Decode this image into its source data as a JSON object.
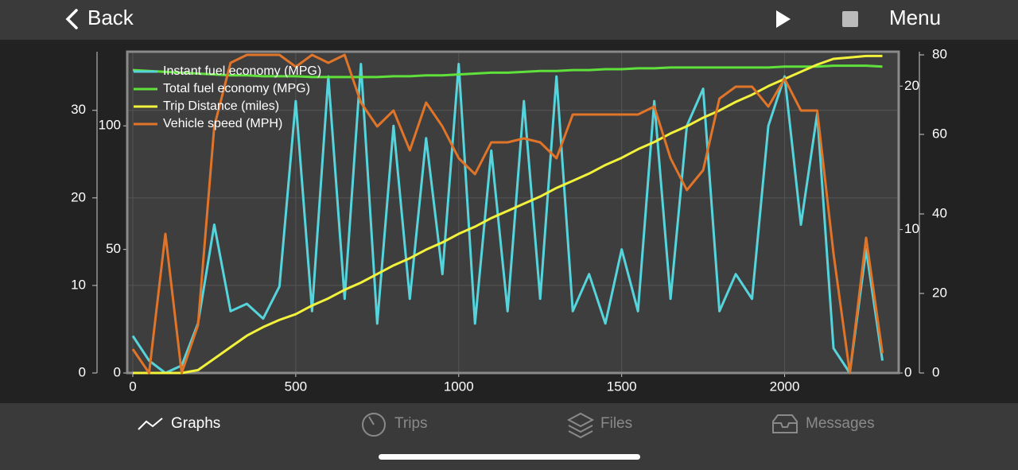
{
  "nav": {
    "back": "Back",
    "menu": "Menu"
  },
  "tabs": [
    "Graphs",
    "Trips",
    "Files",
    "Messages"
  ],
  "chart_data": {
    "type": "line",
    "x": [
      0,
      50,
      100,
      150,
      200,
      250,
      300,
      350,
      400,
      450,
      500,
      550,
      600,
      650,
      700,
      750,
      800,
      850,
      900,
      950,
      1000,
      1050,
      1100,
      1150,
      1200,
      1250,
      1300,
      1350,
      1400,
      1450,
      1500,
      1550,
      1600,
      1650,
      1700,
      1750,
      1800,
      1850,
      1900,
      1950,
      2000,
      2050,
      2100,
      2150,
      2200,
      2250,
      2300
    ],
    "xlim": [
      -17,
      2350
    ],
    "xticks": [
      0,
      500,
      1000,
      1500,
      2000
    ],
    "ylim": [
      0,
      36.7
    ],
    "yticks": [
      0,
      10,
      20,
      30
    ],
    "y2lim": [
      0,
      22.4
    ],
    "y2ticks": [
      0,
      10,
      20
    ],
    "y3lim": [
      0,
      130
    ],
    "y3ticks": [
      0,
      50,
      100
    ],
    "y4lim": [
      0,
      80.8
    ],
    "y4ticks": [
      0,
      20,
      40,
      60,
      80
    ],
    "grid": true,
    "legend": "top-left",
    "series": [
      {
        "name": "Instant fuel economy (MPG)",
        "color": "#56d4dc",
        "axis": "y3",
        "values": [
          15,
          5,
          0,
          3,
          20,
          60,
          25,
          28,
          22,
          35,
          110,
          25,
          120,
          30,
          125,
          20,
          100,
          30,
          95,
          40,
          125,
          20,
          90,
          25,
          110,
          30,
          120,
          25,
          40,
          20,
          50,
          25,
          110,
          30,
          100,
          115,
          25,
          40,
          30,
          100,
          120,
          60,
          105,
          10,
          0,
          50,
          5
        ]
      },
      {
        "name": "Total fuel economy (MPG)",
        "color": "#5fe03a",
        "axis": "y",
        "values": [
          34.6,
          34.5,
          34.4,
          34.3,
          34.2,
          34.1,
          34.0,
          34.0,
          33.9,
          33.9,
          33.9,
          33.8,
          33.8,
          33.8,
          33.8,
          33.8,
          33.9,
          33.9,
          34.0,
          34.0,
          34.1,
          34.2,
          34.3,
          34.3,
          34.4,
          34.5,
          34.5,
          34.6,
          34.6,
          34.7,
          34.7,
          34.8,
          34.8,
          34.9,
          34.9,
          34.9,
          34.9,
          34.9,
          34.9,
          34.9,
          35.0,
          35.0,
          35.0,
          35.1,
          35.1,
          35.1,
          35.0
        ]
      },
      {
        "name": "Trip Distance (miles)",
        "color": "#f2f23c",
        "axis": "y2",
        "values": [
          0,
          0,
          0,
          0,
          0.2,
          1.0,
          1.8,
          2.6,
          3.2,
          3.7,
          4.1,
          4.7,
          5.2,
          5.8,
          6.3,
          6.9,
          7.5,
          8.0,
          8.6,
          9.1,
          9.7,
          10.2,
          10.8,
          11.3,
          11.8,
          12.3,
          12.9,
          13.4,
          13.9,
          14.5,
          15.0,
          15.6,
          16.1,
          16.7,
          17.2,
          17.8,
          18.3,
          18.9,
          19.4,
          20.0,
          20.5,
          21.0,
          21.5,
          21.9,
          22.0,
          22.1,
          22.1
        ]
      },
      {
        "name": "Vehicle speed (MPH)",
        "color": "#e07428",
        "axis": "y4",
        "values": [
          6,
          0,
          35,
          0,
          12,
          62,
          78,
          80,
          80,
          80,
          77,
          80,
          78,
          80,
          68,
          62,
          66,
          56,
          68,
          62,
          54,
          50,
          58,
          58,
          59,
          58,
          54,
          65,
          65,
          65,
          65,
          65,
          67,
          54,
          46,
          51,
          69,
          72,
          72,
          67,
          74,
          66,
          66,
          30,
          0,
          34,
          5
        ]
      }
    ]
  }
}
